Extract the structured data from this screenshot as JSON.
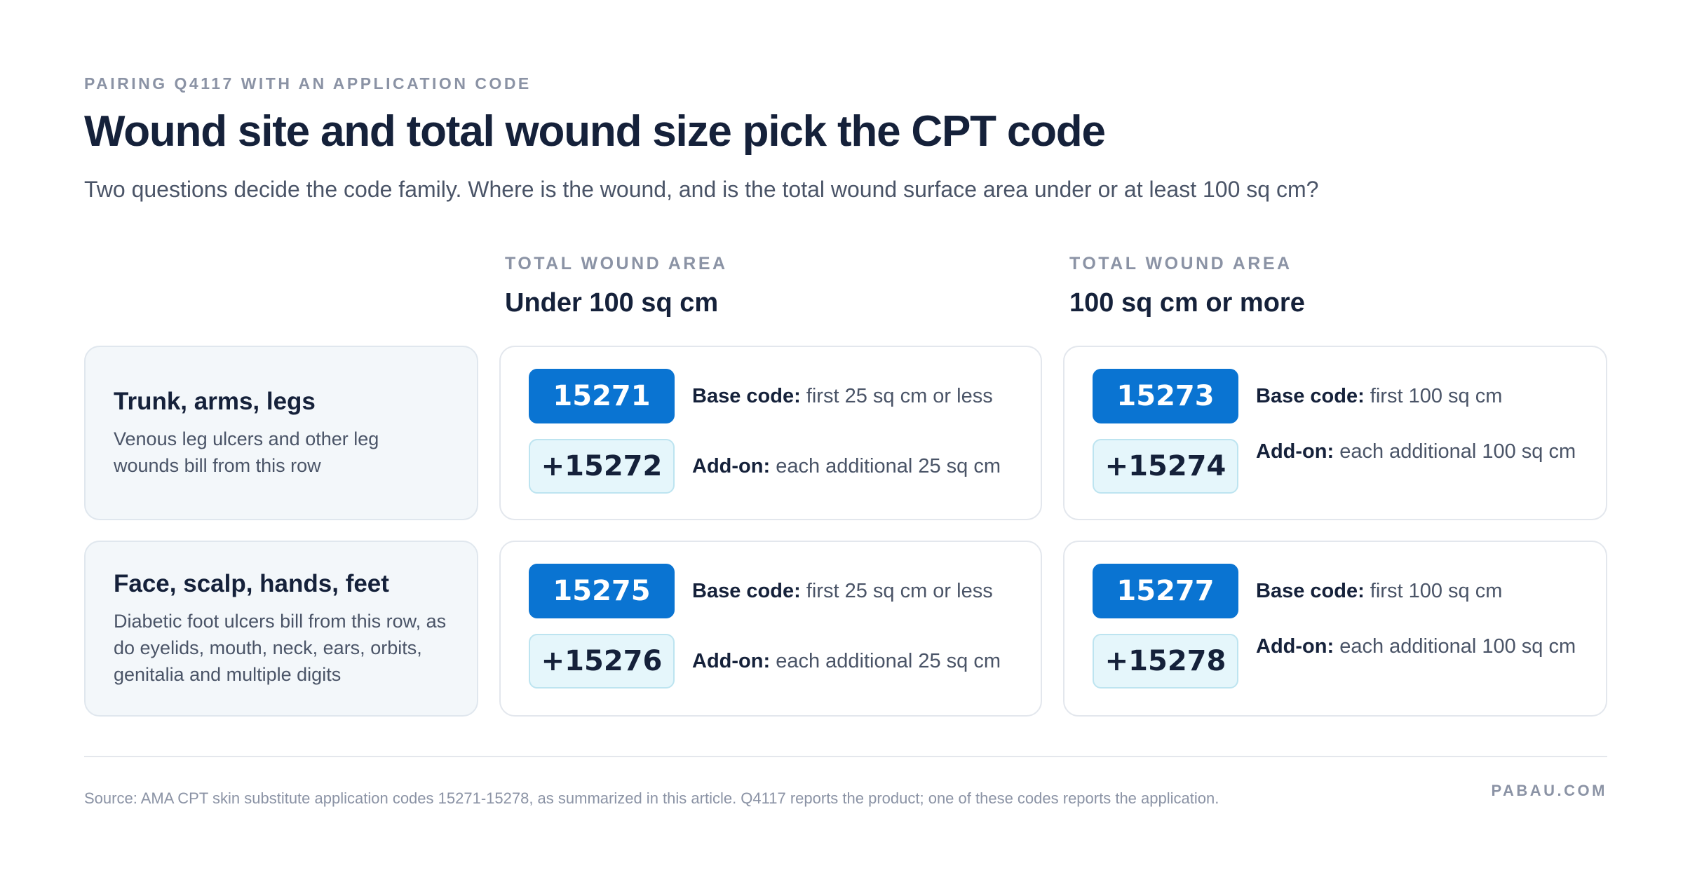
{
  "header": {
    "eyebrow": "PAIRING Q4117 WITH AN APPLICATION CODE",
    "title": "Wound site and total wound size pick the CPT code",
    "subtitle": "Two questions decide the code family. Where is the wound, and is the total wound surface area under or at least 100 sq cm?"
  },
  "columns": [
    {
      "kicker": "TOTAL WOUND AREA",
      "label": "Under 100 sq cm"
    },
    {
      "kicker": "TOTAL WOUND AREA",
      "label": "100 sq cm or more"
    }
  ],
  "rows": [
    {
      "title": "Trunk, arms, legs",
      "description": "Venous leg ulcers and other leg wounds bill from this row",
      "cells": [
        {
          "base_code": "15271",
          "base_label": "Base code:",
          "base_text": "first 25 sq cm or less",
          "addon_code": "+15272",
          "addon_label": "Add-on:",
          "addon_text": "each additional 25 sq cm"
        },
        {
          "base_code": "15273",
          "base_label": "Base code:",
          "base_text": "first 100 sq cm",
          "addon_code": "+15274",
          "addon_label": "Add-on:",
          "addon_text": "each additional 100 sq cm"
        }
      ]
    },
    {
      "title": "Face, scalp, hands, feet",
      "description": "Diabetic foot ulcers bill from this row, as do eyelids, mouth, neck, ears, orbits, genitalia and multiple digits",
      "cells": [
        {
          "base_code": "15275",
          "base_label": "Base code:",
          "base_text": "first 25 sq cm or less",
          "addon_code": "+15276",
          "addon_label": "Add-on:",
          "addon_text": "each additional 25 sq cm"
        },
        {
          "base_code": "15277",
          "base_label": "Base code:",
          "base_text": "first 100 sq cm",
          "addon_code": "+15278",
          "addon_label": "Add-on:",
          "addon_text": "each additional 100 sq cm"
        }
      ]
    }
  ],
  "footer": {
    "source": "Source: AMA CPT skin substitute application codes 15271-15278, as summarized in this article. Q4117 reports the product; one of these codes reports the application.",
    "brand": "PABAU.COM"
  },
  "colors": {
    "base_pill": "#0a74d2",
    "addon_pill": "#e5f6fb",
    "row_card": "#f3f7fa",
    "heading": "#15213a",
    "muted": "#8b93a5"
  }
}
